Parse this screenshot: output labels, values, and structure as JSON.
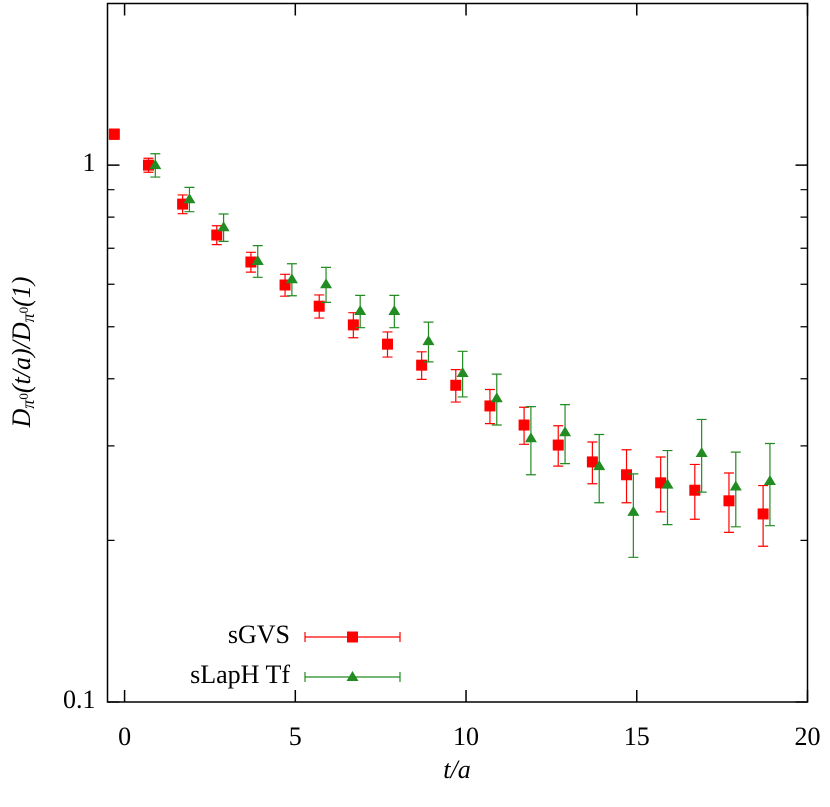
{
  "chart_data": {
    "type": "scatter",
    "log_y": true,
    "legend": "lower left",
    "xlabel": "t/a",
    "ylabel": [
      {
        "text": "D",
        "level": "base"
      },
      {
        "text": "π",
        "level": "sub"
      },
      {
        "text": "0",
        "level": "subsup"
      },
      {
        "text": "(t/a)/",
        "level": "base"
      },
      {
        "text": "D",
        "level": "base"
      },
      {
        "text": "π",
        "level": "sub"
      },
      {
        "text": "0",
        "level": "subsup"
      },
      {
        "text": "(1)",
        "level": "base"
      }
    ],
    "xlim": [
      -0.5,
      20
    ],
    "xticks": [
      0,
      5,
      10,
      15,
      20
    ],
    "ylim": [
      0.1,
      2
    ],
    "yticks": [
      0.1,
      1
    ],
    "series": [
      {
        "name": "sGVS",
        "color": "#ff0000",
        "marker": "square",
        "x": [
          -0.3,
          0.7,
          1.7,
          2.7,
          3.7,
          4.7,
          5.7,
          6.7,
          7.7,
          8.7,
          9.7,
          10.7,
          11.7,
          12.7,
          13.7,
          14.7,
          15.7,
          16.7,
          17.7,
          18.7
        ],
        "values": [
          1.142,
          1.0,
          0.846,
          0.741,
          0.66,
          0.598,
          0.546,
          0.504,
          0.464,
          0.424,
          0.389,
          0.356,
          0.328,
          0.301,
          0.28,
          0.265,
          0.256,
          0.248,
          0.237,
          0.224
        ],
        "errors": [
          0.025,
          0.03,
          0.034,
          0.03,
          0.028,
          0.028,
          0.027,
          0.027,
          0.025,
          0.025,
          0.027,
          0.026,
          0.026,
          0.026,
          0.025,
          0.03,
          0.03,
          0.029,
          0.03,
          0.029
        ]
      },
      {
        "name": "sLapH Tf",
        "color": "#228b22",
        "marker": "triangle",
        "x": [
          0.9,
          1.9,
          2.9,
          3.9,
          4.9,
          5.9,
          6.9,
          7.9,
          8.9,
          9.9,
          10.9,
          11.9,
          12.9,
          13.9,
          14.9,
          15.9,
          16.9,
          17.9,
          18.9
        ],
        "values": [
          1.0,
          0.864,
          0.766,
          0.663,
          0.613,
          0.6,
          0.535,
          0.535,
          0.47,
          0.41,
          0.368,
          0.31,
          0.318,
          0.275,
          0.226,
          0.254,
          0.291,
          0.252,
          0.258
        ],
        "errors": [
          0.05,
          0.045,
          0.045,
          0.045,
          0.042,
          0.045,
          0.037,
          0.037,
          0.04,
          0.04,
          0.04,
          0.045,
          0.04,
          0.04,
          0.04,
          0.04,
          0.045,
          0.04,
          0.045
        ]
      }
    ]
  }
}
